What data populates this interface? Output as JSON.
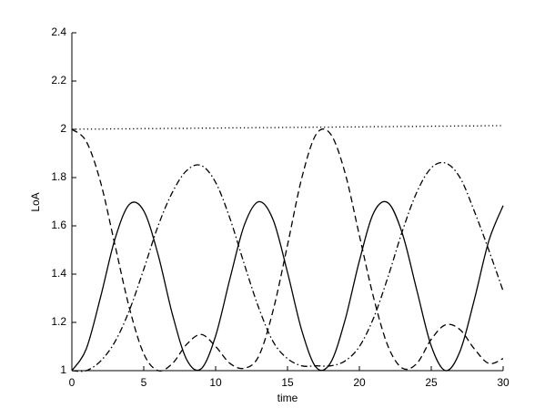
{
  "chart_data": {
    "type": "line",
    "xlabel": "time",
    "ylabel": "LoA",
    "x": [
      0,
      1,
      2,
      3,
      4,
      5,
      6,
      7,
      8,
      9,
      10,
      11,
      12,
      13,
      14,
      15,
      16,
      17,
      18,
      19,
      20,
      21,
      22,
      23,
      24,
      25,
      26,
      27,
      28,
      29,
      30
    ],
    "series": [
      {
        "color": "#000000",
        "dash": "solid",
        "values": [
          1.0,
          1.09,
          1.306,
          1.546,
          1.689,
          1.662,
          1.48,
          1.232,
          1.044,
          1.008,
          1.144,
          1.382,
          1.604,
          1.7,
          1.625,
          1.407,
          1.165,
          1.013,
          1.033,
          1.209,
          1.455,
          1.655,
          1.695,
          1.566,
          1.332,
          1.102,
          1.0,
          1.08,
          1.295,
          1.537,
          1.684
        ]
      },
      {
        "color": "#000000",
        "dash": "dashed",
        "values": [
          2.0,
          1.95,
          1.78,
          1.52,
          1.26,
          1.07,
          1.0,
          1.03,
          1.11,
          1.15,
          1.1,
          1.03,
          1.01,
          1.06,
          1.25,
          1.52,
          1.8,
          1.98,
          1.98,
          1.82,
          1.56,
          1.3,
          1.1,
          1.01,
          1.03,
          1.13,
          1.19,
          1.17,
          1.09,
          1.03,
          1.05
        ]
      },
      {
        "color": "#000000",
        "dash": "dashdot",
        "values": [
          1.0,
          1.0,
          1.04,
          1.12,
          1.25,
          1.42,
          1.6,
          1.74,
          1.83,
          1.85,
          1.78,
          1.63,
          1.44,
          1.26,
          1.12,
          1.05,
          1.02,
          1.02,
          1.02,
          1.04,
          1.1,
          1.22,
          1.39,
          1.58,
          1.74,
          1.84,
          1.86,
          1.8,
          1.66,
          1.5,
          1.33
        ]
      },
      {
        "color": "#000000",
        "dash": "dotted",
        "values": [
          2.0,
          2.001,
          2.001,
          2.002,
          2.002,
          2.003,
          2.003,
          2.004,
          2.004,
          2.005,
          2.005,
          2.006,
          2.006,
          2.007,
          2.007,
          2.008,
          2.008,
          2.009,
          2.009,
          2.01,
          2.01,
          2.011,
          2.011,
          2.012,
          2.012,
          2.013,
          2.013,
          2.014,
          2.014,
          2.015,
          2.015
        ]
      }
    ],
    "xlim": [
      0,
      30
    ],
    "ylim": [
      1,
      2.4
    ],
    "xticks": [
      0,
      5,
      10,
      15,
      20,
      25,
      30
    ],
    "yticks": [
      1,
      1.2,
      1.4,
      1.6,
      1.8,
      2,
      2.2,
      2.4
    ],
    "grid": false
  }
}
